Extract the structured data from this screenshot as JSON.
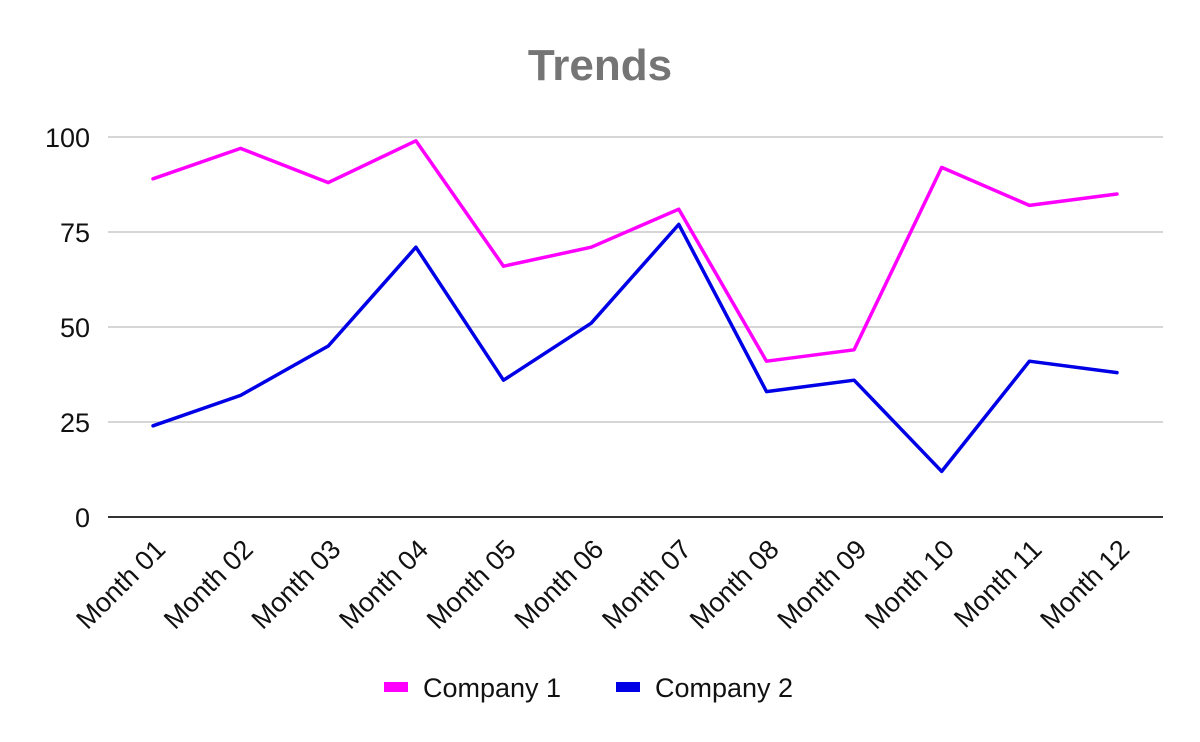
{
  "chart_data": {
    "type": "line",
    "title": "Trends",
    "categories": [
      "Month 01",
      "Month 02",
      "Month 03",
      "Month 04",
      "Month 05",
      "Month 06",
      "Month 07",
      "Month 08",
      "Month 09",
      "Month 10",
      "Month 11",
      "Month 12"
    ],
    "series": [
      {
        "name": "Company 1",
        "color": "#ff00ff",
        "values": [
          89,
          97,
          88,
          99,
          66,
          71,
          81,
          41,
          44,
          92,
          82,
          85
        ]
      },
      {
        "name": "Company 2",
        "color": "#0000e6",
        "values": [
          24,
          32,
          45,
          71,
          36,
          51,
          77,
          33,
          36,
          12,
          41,
          38
        ]
      }
    ],
    "yticks": [
      "0",
      "25",
      "50",
      "75",
      "100"
    ],
    "ylim": [
      0,
      100
    ],
    "grid": true,
    "legend": "bottom"
  }
}
